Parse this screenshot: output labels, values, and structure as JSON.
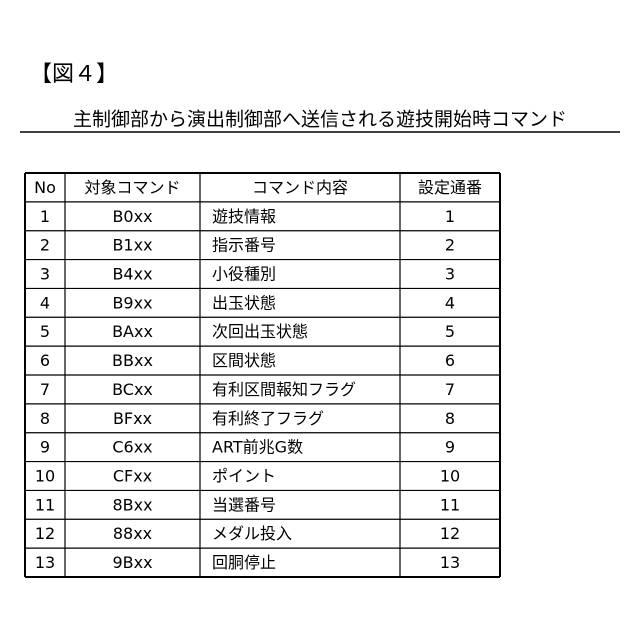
{
  "figure_label": "【図４】",
  "title": "主制御部から演出制御部へ送信される遊技開始時コマンド",
  "table": {
    "header": [
      "No",
      "対象コマンド",
      "コマンド内容",
      "設定通番"
    ],
    "rows": [
      [
        "1",
        "B0xx",
        "遊技情報",
        "1"
      ],
      [
        "2",
        "B1xx",
        "指示番号",
        "2"
      ],
      [
        "3",
        "B4xx",
        "小役種別",
        "3"
      ],
      [
        "4",
        "B9xx",
        "出玉状態",
        "4"
      ],
      [
        "5",
        "BAxx",
        "次回出玉状態",
        "5"
      ],
      [
        "6",
        "BBxx",
        "区間状態",
        "6"
      ],
      [
        "7",
        "BCxx",
        "有利区間報知フラグ",
        "7"
      ],
      [
        "8",
        "BFxx",
        "有利終了フラグ",
        "8"
      ],
      [
        "9",
        "C6xx",
        "ART前兆G数",
        "9"
      ],
      [
        "10",
        "CFxx",
        "ポイント",
        "10"
      ],
      [
        "11",
        "8Bxx",
        "当選番号",
        "11"
      ],
      [
        "12",
        "88xx",
        "メダル投入",
        "12"
      ],
      [
        "13",
        "9Bxx",
        "回胴停止",
        "13"
      ]
    ]
  }
}
